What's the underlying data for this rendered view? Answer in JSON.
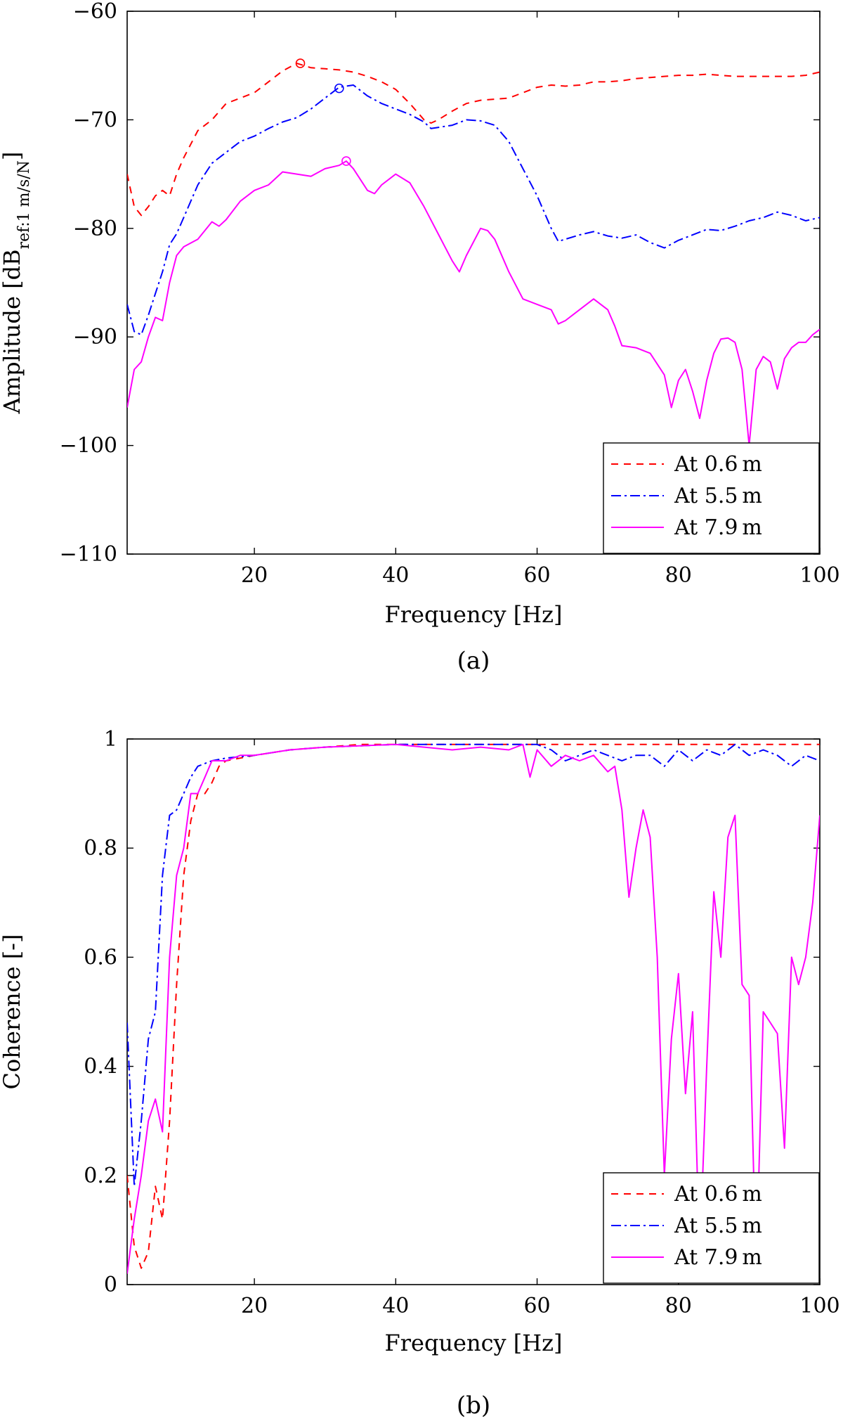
{
  "chart_data": [
    {
      "type": "line",
      "panel_label": "(a)",
      "xlabel": "Frequency [Hz]",
      "ylabel": "Amplitude [dB",
      "ylabel_sub": "ref:1 m/s/N",
      "ylabel_close": "]",
      "xlim": [
        2,
        100
      ],
      "ylim": [
        -110,
        -60
      ],
      "xticks": [
        20,
        40,
        60,
        80,
        100
      ],
      "xtick_labels": [
        "20",
        "40",
        "60",
        "80",
        "100"
      ],
      "yticks": [
        -110,
        -100,
        -90,
        -80,
        -70,
        -60
      ],
      "ytick_labels": [
        "−110",
        "−100",
        "−90",
        "−80",
        "−70",
        "−60"
      ],
      "grid": false,
      "legend_position": "bottom-right",
      "series": [
        {
          "name": "At 0.6 m",
          "color": "#ff0000",
          "dash": "10 8",
          "x": [
            2,
            3,
            4,
            5,
            6,
            7,
            8,
            9,
            10,
            12,
            14,
            16,
            18,
            20,
            22,
            24,
            26,
            28,
            30,
            32,
            34,
            36,
            38,
            40,
            42,
            44,
            45,
            46,
            48,
            50,
            52,
            54,
            56,
            58,
            60,
            62,
            64,
            66,
            68,
            70,
            72,
            74,
            76,
            78,
            80,
            82,
            84,
            86,
            88,
            90,
            92,
            94,
            96,
            98,
            100
          ],
          "y": [
            -75,
            -78,
            -78.8,
            -78,
            -77,
            -76.5,
            -77,
            -75,
            -73.5,
            -71,
            -70,
            -68.5,
            -68,
            -67.5,
            -66.5,
            -65.5,
            -64.8,
            -65.2,
            -65.3,
            -65.4,
            -65.6,
            -66,
            -66.5,
            -67.2,
            -68.5,
            -70,
            -70.3,
            -70,
            -69.2,
            -68.5,
            -68.2,
            -68.1,
            -68,
            -67.5,
            -67,
            -66.8,
            -66.9,
            -66.8,
            -66.5,
            -66.5,
            -66.4,
            -66.2,
            -66.1,
            -66,
            -65.9,
            -65.9,
            -65.8,
            -65.9,
            -66,
            -66,
            -66,
            -66,
            -66,
            -65.9,
            -65.6
          ],
          "peak": {
            "x": 26.5,
            "y": -64.8
          }
        },
        {
          "name": "At 5.5 m",
          "color": "#0000ff",
          "dash": "14 5 3 5",
          "x": [
            2,
            3,
            4,
            5,
            6,
            7,
            8,
            9,
            10,
            12,
            14,
            16,
            18,
            20,
            22,
            24,
            26,
            28,
            30,
            32,
            34,
            36,
            38,
            40,
            42,
            44,
            45,
            46,
            48,
            50,
            52,
            54,
            56,
            58,
            60,
            62,
            63,
            64,
            66,
            68,
            70,
            72,
            74,
            76,
            78,
            80,
            82,
            84,
            86,
            88,
            90,
            92,
            94,
            96,
            98,
            100
          ],
          "y": [
            -87,
            -89.5,
            -89.8,
            -88,
            -86,
            -84,
            -81.5,
            -80.5,
            -79,
            -76,
            -74,
            -73,
            -72,
            -71.5,
            -70.8,
            -70.2,
            -69.8,
            -69,
            -68,
            -67,
            -66.8,
            -67.8,
            -68.5,
            -69,
            -69.5,
            -70.2,
            -70.8,
            -70.7,
            -70.5,
            -70,
            -70.1,
            -70.5,
            -72,
            -74.5,
            -77,
            -80,
            -81.2,
            -81,
            -80.6,
            -80.3,
            -80.7,
            -80.9,
            -80.6,
            -81.3,
            -81.8,
            -81.1,
            -80.6,
            -80.1,
            -80.2,
            -79.8,
            -79.3,
            -79,
            -78.5,
            -78.8,
            -79.3,
            -79
          ],
          "peak": {
            "x": 32,
            "y": -67.1
          }
        },
        {
          "name": "At 7.9 m",
          "color": "#ff00ff",
          "dash": "",
          "x": [
            2,
            3,
            4,
            5,
            6,
            7,
            8,
            9,
            10,
            12,
            14,
            15,
            16,
            18,
            20,
            22,
            24,
            26,
            28,
            30,
            32,
            33,
            34,
            36,
            37,
            38,
            40,
            42,
            44,
            46,
            48,
            49,
            50,
            52,
            53,
            54,
            56,
            58,
            60,
            62,
            63,
            64,
            66,
            68,
            70,
            71,
            72,
            74,
            76,
            78,
            79,
            80,
            81,
            82,
            83,
            84,
            85,
            86,
            87,
            88,
            89,
            90,
            91,
            92,
            93,
            94,
            95,
            96,
            97,
            98,
            99,
            100
          ],
          "y": [
            -96.5,
            -93,
            -92.3,
            -90,
            -88.2,
            -88.5,
            -85,
            -82.5,
            -81.7,
            -81,
            -79.4,
            -79.8,
            -79.2,
            -77.5,
            -76.5,
            -76,
            -74.8,
            -75,
            -75.2,
            -74.5,
            -74.2,
            -73.8,
            -74.5,
            -76.5,
            -76.8,
            -76,
            -75,
            -75.8,
            -78,
            -80.5,
            -83,
            -84,
            -82.5,
            -80,
            -80.2,
            -81,
            -84,
            -86.5,
            -87,
            -87.5,
            -88.8,
            -88.5,
            -87.5,
            -86.5,
            -87.5,
            -89,
            -90.8,
            -91,
            -91.5,
            -93.5,
            -96.5,
            -94,
            -93,
            -95,
            -97.5,
            -94,
            -91.5,
            -90.2,
            -90.1,
            -90.5,
            -93,
            -100,
            -93,
            -91.8,
            -92.3,
            -94.8,
            -92,
            -91,
            -90.5,
            -90.5,
            -89.8,
            -89.3
          ],
          "peak": {
            "x": 33,
            "y": -73.8
          }
        }
      ]
    },
    {
      "type": "line",
      "panel_label": "(b)",
      "xlabel": "Frequency [Hz]",
      "ylabel": "Coherence [-]",
      "xlim": [
        2,
        100
      ],
      "ylim": [
        0,
        1
      ],
      "xticks": [
        20,
        40,
        60,
        80,
        100
      ],
      "xtick_labels": [
        "20",
        "40",
        "60",
        "80",
        "100"
      ],
      "yticks": [
        0,
        0.2,
        0.4,
        0.6,
        0.8,
        1
      ],
      "ytick_labels": [
        "0",
        "0.2",
        "0.4",
        "0.6",
        "0.8",
        "1"
      ],
      "grid": false,
      "legend_position": "bottom-right",
      "series": [
        {
          "name": "At 0.6 m",
          "color": "#ff0000",
          "dash": "10 8",
          "x": [
            2,
            3,
            4,
            5,
            6,
            7,
            8,
            9,
            10,
            11,
            12,
            13,
            14,
            15,
            16,
            18,
            20,
            25,
            30,
            35,
            40,
            45,
            50,
            55,
            60,
            65,
            70,
            75,
            80,
            85,
            90,
            95,
            100
          ],
          "y": [
            0.2,
            0.07,
            0.03,
            0.06,
            0.18,
            0.12,
            0.3,
            0.55,
            0.75,
            0.85,
            0.9,
            0.9,
            0.92,
            0.95,
            0.96,
            0.965,
            0.97,
            0.98,
            0.985,
            0.99,
            0.99,
            0.99,
            0.99,
            0.99,
            0.99,
            0.99,
            0.99,
            0.99,
            0.99,
            0.99,
            0.99,
            0.99,
            0.99
          ]
        },
        {
          "name": "At 5.5 m",
          "color": "#0000ff",
          "dash": "14 5 3 5",
          "x": [
            2,
            3,
            4,
            5,
            6,
            7,
            8,
            9,
            10,
            11,
            12,
            14,
            16,
            20,
            25,
            30,
            40,
            50,
            55,
            60,
            62,
            64,
            66,
            68,
            70,
            72,
            74,
            76,
            78,
            80,
            82,
            84,
            86,
            88,
            90,
            92,
            94,
            96,
            98,
            100
          ],
          "y": [
            0.48,
            0.18,
            0.3,
            0.45,
            0.5,
            0.75,
            0.86,
            0.87,
            0.9,
            0.93,
            0.95,
            0.96,
            0.965,
            0.97,
            0.98,
            0.985,
            0.99,
            0.99,
            0.99,
            0.99,
            0.98,
            0.96,
            0.97,
            0.98,
            0.97,
            0.96,
            0.97,
            0.97,
            0.95,
            0.98,
            0.96,
            0.98,
            0.97,
            0.99,
            0.97,
            0.98,
            0.97,
            0.95,
            0.97,
            0.96
          ]
        },
        {
          "name": "At 7.9 m",
          "color": "#ff00ff",
          "dash": "",
          "x": [
            2,
            3,
            4,
            5,
            6,
            7,
            8,
            9,
            10,
            11,
            12,
            13,
            14,
            16,
            18,
            20,
            25,
            30,
            40,
            48,
            52,
            56,
            58,
            59,
            60,
            62,
            64,
            66,
            68,
            70,
            71,
            72,
            73,
            74,
            75,
            76,
            77,
            78,
            79,
            80,
            81,
            82,
            83,
            84,
            85,
            86,
            87,
            88,
            89,
            90,
            91,
            92,
            93,
            94,
            95,
            96,
            97,
            98,
            99,
            100
          ],
          "y": [
            0.02,
            0.12,
            0.2,
            0.3,
            0.34,
            0.28,
            0.6,
            0.75,
            0.8,
            0.9,
            0.9,
            0.93,
            0.96,
            0.96,
            0.97,
            0.97,
            0.98,
            0.985,
            0.99,
            0.98,
            0.985,
            0.98,
            0.99,
            0.93,
            0.98,
            0.95,
            0.97,
            0.96,
            0.97,
            0.94,
            0.95,
            0.87,
            0.71,
            0.8,
            0.87,
            0.82,
            0.6,
            0.2,
            0.45,
            0.57,
            0.35,
            0.5,
            0.05,
            0.4,
            0.72,
            0.6,
            0.82,
            0.86,
            0.55,
            0.53,
            0.02,
            0.5,
            0.48,
            0.46,
            0.25,
            0.6,
            0.55,
            0.6,
            0.7,
            0.86
          ]
        }
      ]
    }
  ]
}
